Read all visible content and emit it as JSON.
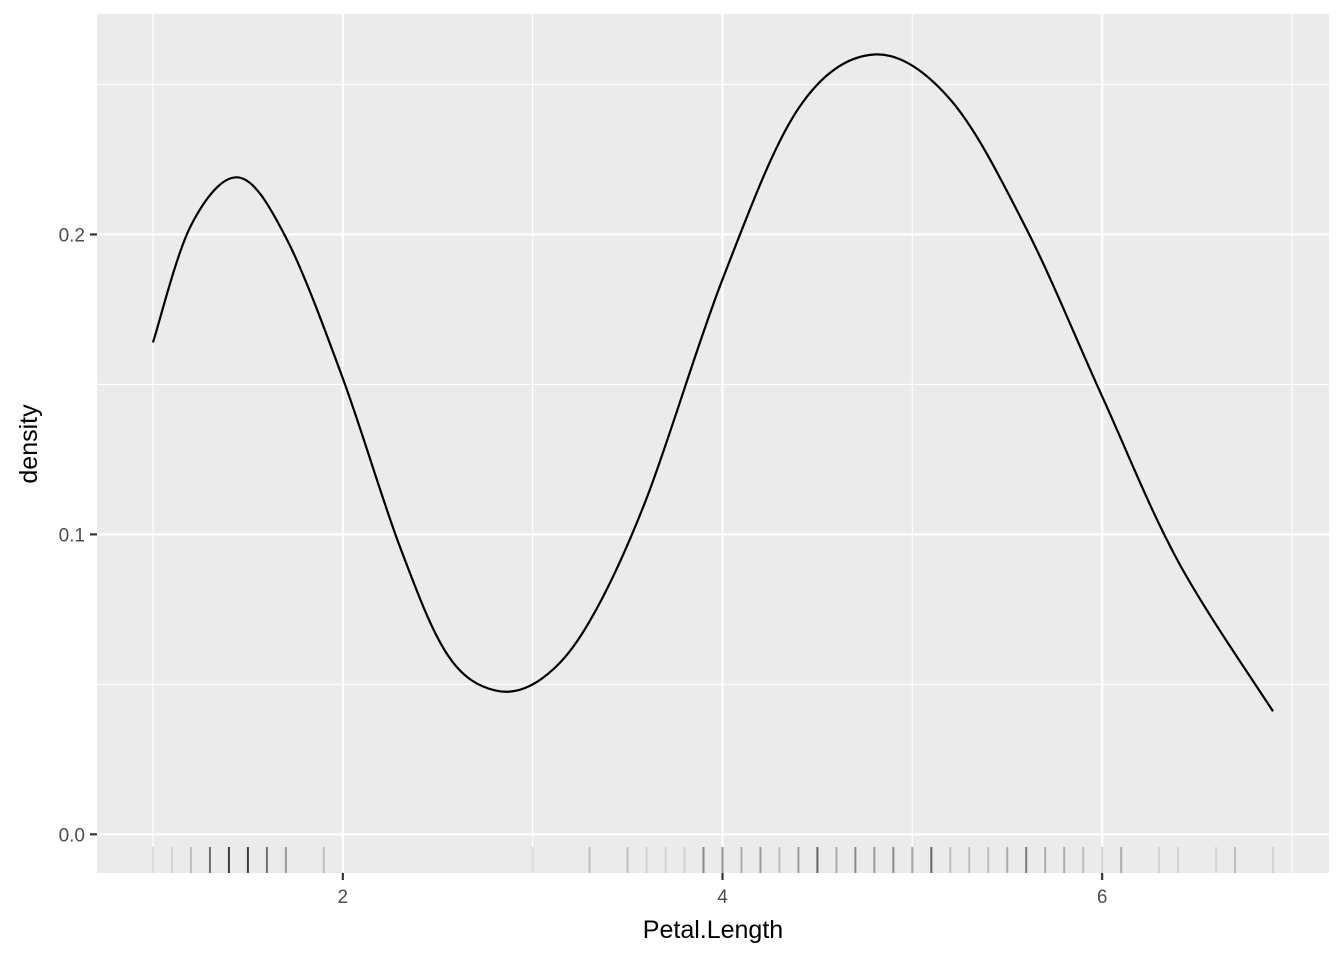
{
  "chart_data": {
    "type": "line",
    "title": "",
    "xlabel": "Petal.Length",
    "ylabel": "density",
    "xlim": [
      0.705,
      7.195
    ],
    "ylim": [
      -0.0129,
      0.2735
    ],
    "x_ticks": [
      2,
      4,
      6
    ],
    "x_tick_labels": [
      "2",
      "4",
      "6"
    ],
    "y_ticks": [
      0.0,
      0.1,
      0.2
    ],
    "y_tick_labels": [
      "0.0",
      "0.1",
      "0.2"
    ],
    "grid": true,
    "legend": "none",
    "series": [
      {
        "x": [
          1.0,
          1.2,
          1.45,
          1.7,
          2.0,
          2.3,
          2.55,
          2.8,
          3.05,
          3.3,
          3.6,
          4.0,
          4.4,
          4.8,
          5.2,
          5.6,
          6.0,
          6.4,
          6.9
        ],
        "y": [
          0.164,
          0.203,
          0.219,
          0.199,
          0.152,
          0.096,
          0.06,
          0.048,
          0.052,
          0.071,
          0.112,
          0.185,
          0.242,
          0.26,
          0.245,
          0.202,
          0.146,
          0.091,
          0.041
        ]
      }
    ],
    "rug": {
      "x": [
        1.0,
        1.1,
        1.2,
        1.3,
        1.4,
        1.5,
        1.6,
        1.7,
        1.9,
        3.0,
        3.3,
        3.5,
        3.6,
        3.7,
        3.8,
        3.9,
        4.0,
        4.1,
        4.2,
        4.3,
        4.4,
        4.5,
        4.6,
        4.7,
        4.8,
        4.9,
        5.0,
        5.1,
        5.2,
        5.3,
        5.4,
        5.5,
        5.6,
        5.7,
        5.8,
        5.9,
        6.0,
        6.1,
        6.3,
        6.4,
        6.6,
        6.7,
        6.9
      ],
      "counts": [
        1,
        1,
        2,
        7,
        13,
        13,
        7,
        4,
        2,
        1,
        2,
        2,
        1,
        1,
        1,
        5,
        5,
        3,
        4,
        2,
        4,
        8,
        3,
        5,
        4,
        5,
        4,
        8,
        2,
        2,
        2,
        3,
        6,
        3,
        3,
        2,
        2,
        3,
        1,
        1,
        1,
        2,
        1
      ]
    }
  }
}
